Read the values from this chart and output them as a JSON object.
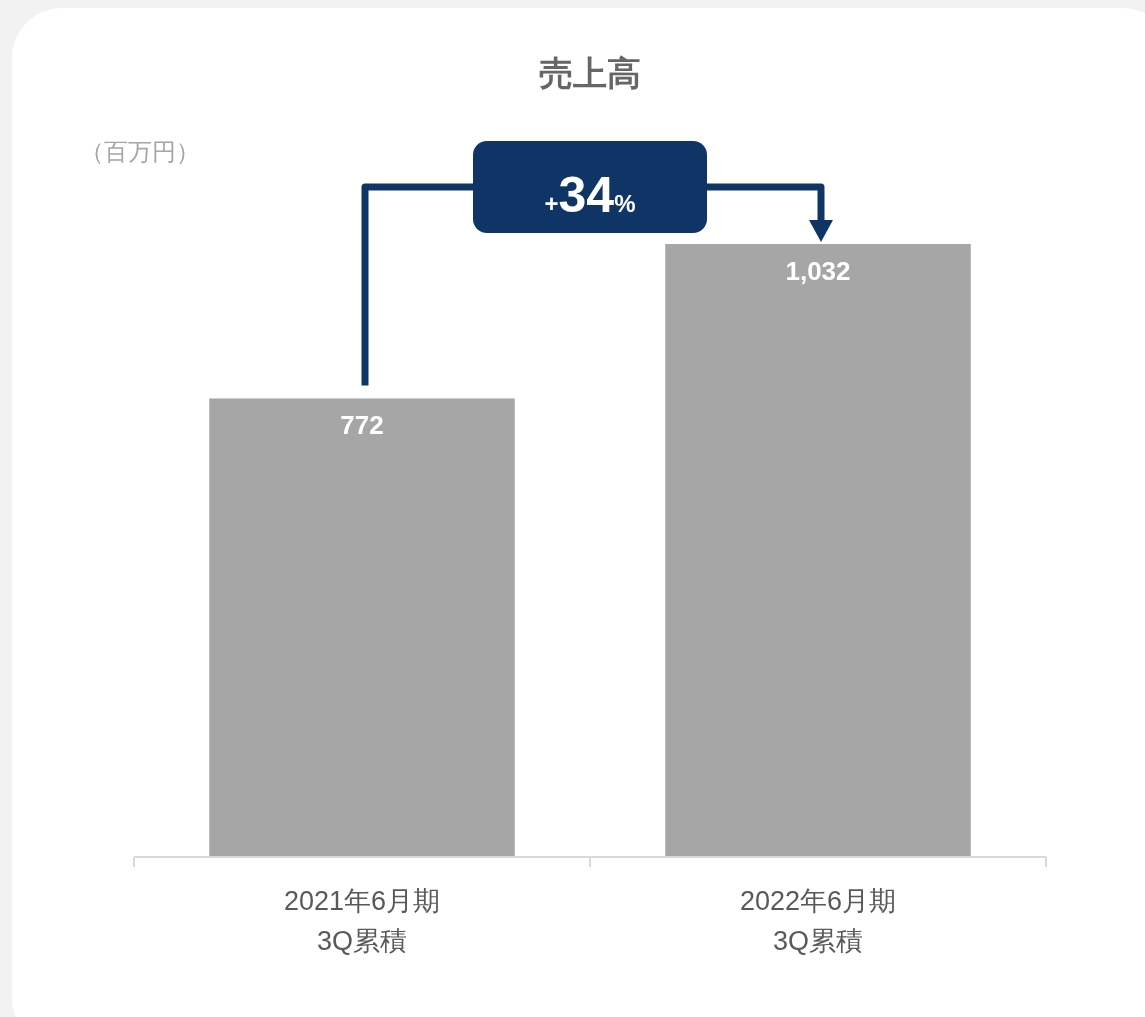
{
  "chart_data": {
    "type": "bar",
    "title": "売上高",
    "ylabel": "（百万円）",
    "categories": [
      "2021年6月期\n3Q累積",
      "2022年6月期\n3Q累積"
    ],
    "values": [
      772,
      1032
    ],
    "color": "#a6a6a6",
    "value_labels": [
      "772",
      "1,032"
    ],
    "annotations": [
      "+34%"
    ]
  }
}
